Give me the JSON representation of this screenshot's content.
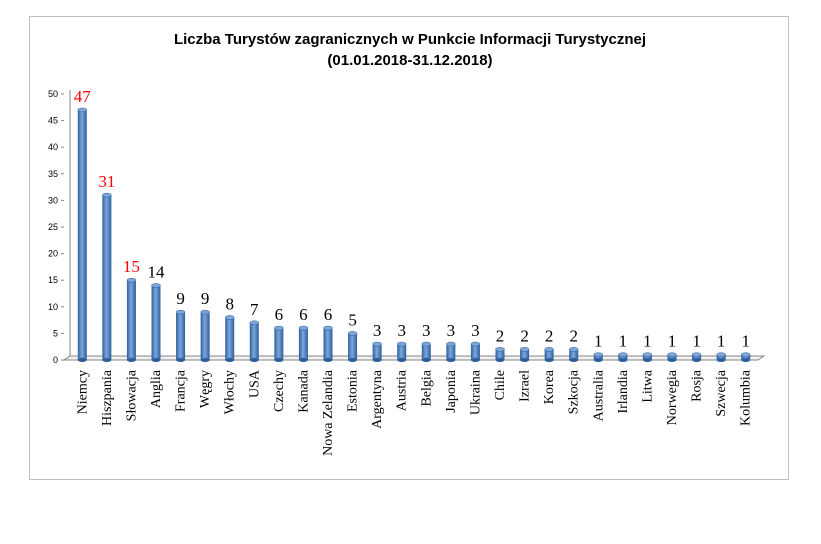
{
  "chart_data": {
    "type": "bar",
    "title": "Liczba Turystów zagranicznych w Punkcie Informacji Turystycznej",
    "subtitle": "(01.01.2018-31.12.2018)",
    "categories": [
      "Niemcy",
      "Hiszpania",
      "Słowacja",
      "Anglia",
      "Francja",
      "Węgry",
      "Włochy",
      "USA",
      "Czechy",
      "Kanada",
      "Nowa Zelandia",
      "Estonia",
      "Argentyna",
      "Austria",
      "Belgia",
      "Japonia",
      "Ukraina",
      "Chile",
      "Izrael",
      "Korea",
      "Szkocja",
      "Australia",
      "Irlandia",
      "Litwa",
      "Norwegia",
      "Rosja",
      "Szwecja",
      "Kolumbia"
    ],
    "values": [
      47,
      31,
      15,
      14,
      9,
      9,
      8,
      7,
      6,
      6,
      6,
      5,
      3,
      3,
      3,
      3,
      3,
      2,
      2,
      2,
      2,
      1,
      1,
      1,
      1,
      1,
      1,
      1
    ],
    "ylim": [
      0,
      50
    ],
    "yticks": [
      0,
      5,
      10,
      15,
      20,
      25,
      30,
      35,
      40,
      45,
      50
    ],
    "xlabel": "",
    "ylabel": "",
    "grid": false,
    "legend": "none",
    "colors": {
      "bar": "#4f81bd",
      "bar_dark": "#2c5f9e",
      "bar_light": "#7fa6d9",
      "highlight_label": "#ff0000",
      "normal_label": "#000000"
    },
    "highlighted_indices": [
      0,
      1,
      2
    ]
  }
}
